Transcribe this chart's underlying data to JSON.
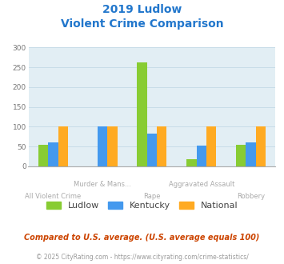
{
  "title_line1": "2019 Ludlow",
  "title_line2": "Violent Crime Comparison",
  "categories": [
    "All Violent Crime",
    "Murder & Mans...",
    "Rape",
    "Aggravated Assault",
    "Robbery"
  ],
  "series": {
    "Ludlow": [
      55,
      0,
      262,
      18,
      55
    ],
    "Kentucky": [
      60,
      100,
      83,
      52,
      60
    ],
    "National": [
      100,
      100,
      100,
      100,
      100
    ]
  },
  "colors": {
    "Ludlow": "#88cc33",
    "Kentucky": "#4499ee",
    "National": "#ffaa22"
  },
  "ylim": [
    0,
    300
  ],
  "yticks": [
    0,
    50,
    100,
    150,
    200,
    250,
    300
  ],
  "title_color": "#2277cc",
  "bg_color": "#e2eef4",
  "grid_color": "#c8dce8",
  "xlabel_color_top": "#aaaaaa",
  "xlabel_color_bot": "#aaaaaa",
  "footer_note": "Compared to U.S. average. (U.S. average equals 100)",
  "footer_credit": "© 2025 CityRating.com - https://www.cityrating.com/crime-statistics/",
  "footer_note_color": "#cc4400",
  "footer_credit_color": "#999999",
  "label_top": [
    "",
    "Murder & Mans...",
    "",
    "Aggravated Assault",
    ""
  ],
  "label_bot": [
    "All Violent Crime",
    "",
    "Rape",
    "",
    "Robbery"
  ]
}
